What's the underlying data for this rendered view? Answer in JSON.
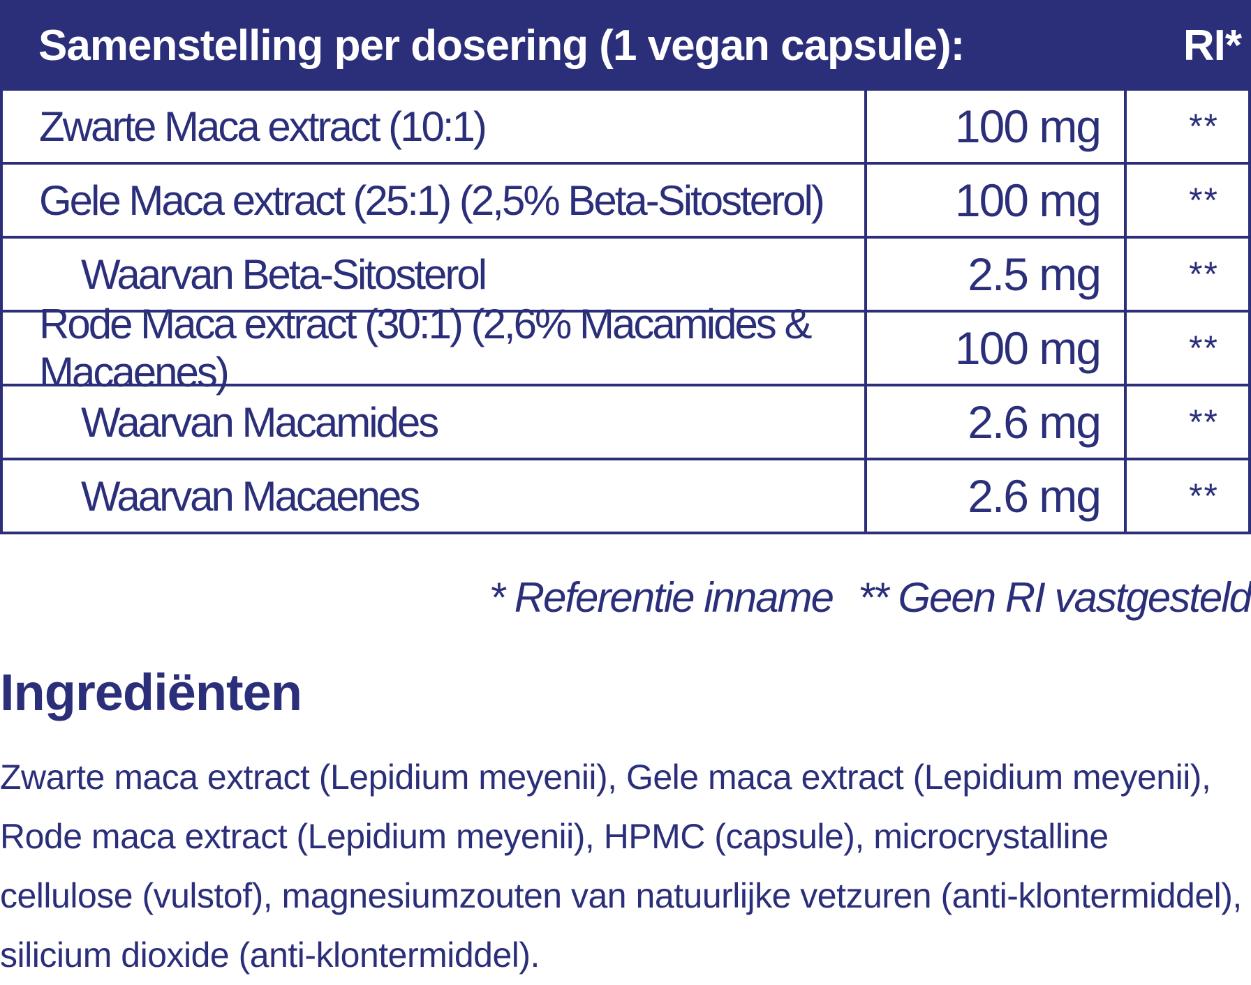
{
  "table": {
    "header_title": "Samenstelling per dosering (1 vegan capsule):",
    "header_ri": "RI*",
    "rows": [
      {
        "name": "Zwarte Maca extract (10:1)",
        "amount": "100 mg",
        "ri": "**"
      },
      {
        "name": "Gele Maca extract (25:1) (2,5% Beta-Sitosterol)",
        "amount": "100 mg",
        "ri": "**"
      },
      {
        "name": "Waarvan Beta-Sitosterol",
        "amount": "2.5 mg",
        "ri": "**"
      },
      {
        "name": "Rode Maca extract (30:1) (2,6% Macamides & Macaenes)",
        "amount": "100 mg",
        "ri": "**"
      },
      {
        "name": "Waarvan Macamides",
        "amount": "2.6 mg",
        "ri": "**"
      },
      {
        "name": "Waarvan Macaenes",
        "amount": "2.6 mg",
        "ri": "**"
      }
    ]
  },
  "footnotes": {
    "ri": "* Referentie inname",
    "no_ri": "** Geen RI vastgesteld"
  },
  "ingredients": {
    "title": "Ingrediënten",
    "text": "Zwarte maca extract (Lepidium meyenii), Gele maca extract (Lepidium meyenii), Rode maca extract (Lepidium meyenii), HPMC (capsule), microcrystalline cellulose (vulstof), magnesiumzouten van natuurlijke vetzuren (anti-klontermiddel), silicium dioxide (anti-klontermiddel)."
  },
  "colors": {
    "brand_navy": "#2b2f7a",
    "background": "#ffffff"
  }
}
